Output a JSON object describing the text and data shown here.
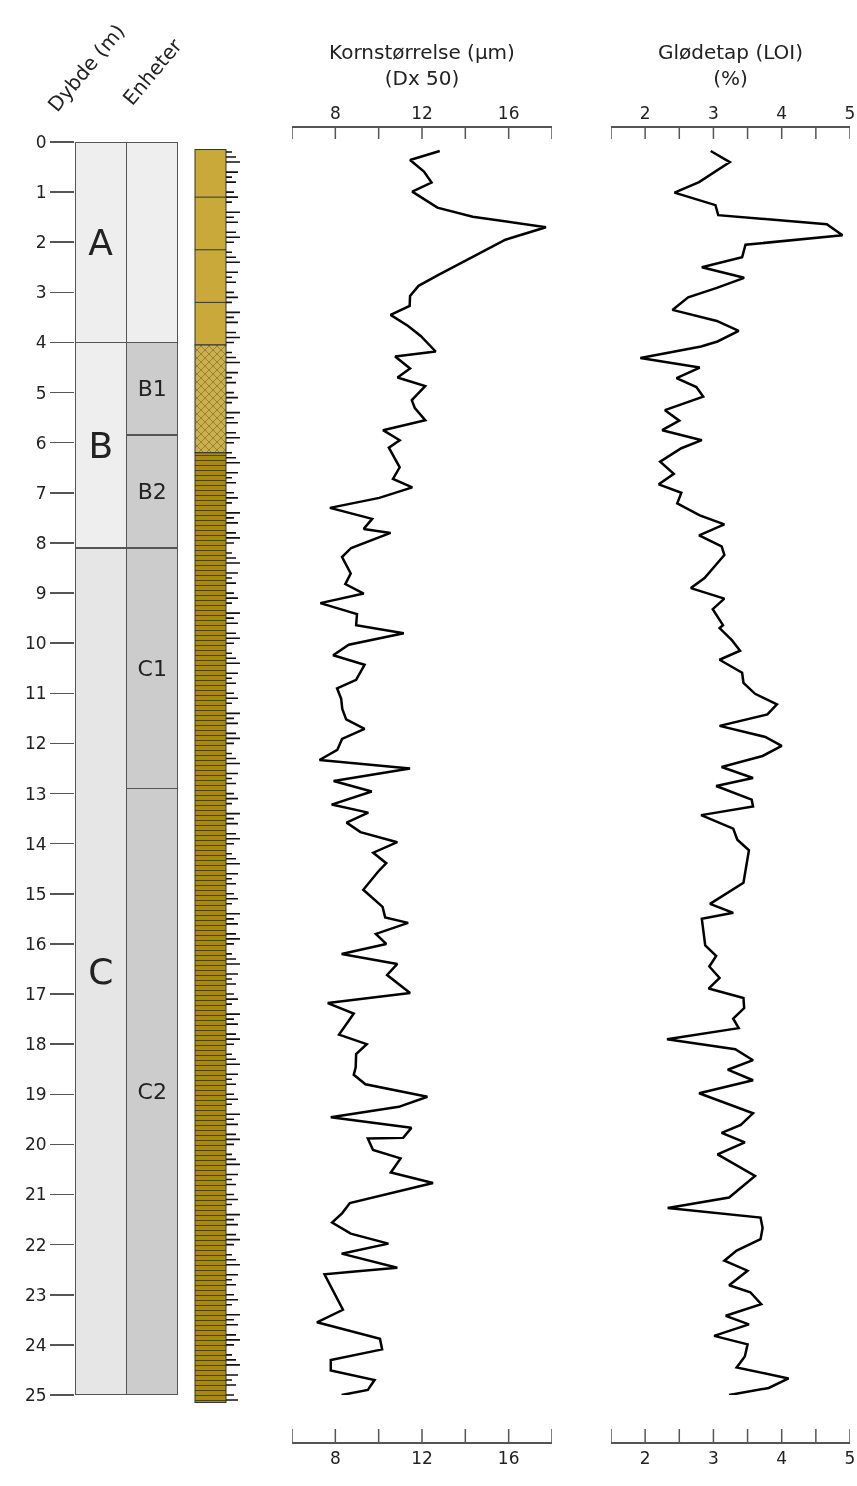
{
  "chart_data": [
    {
      "type": "bar",
      "stacked": true,
      "categories": [
        null,
        null
      ],
      "ylabel": "Dybde (m)",
      "xlabel": "Enheter",
      "ylim": [
        25,
        0
      ],
      "yticks": [
        0,
        1,
        2,
        3,
        4,
        5,
        6,
        7,
        8,
        9,
        10,
        11,
        12,
        13,
        14,
        15,
        16,
        17,
        18,
        19,
        20,
        21,
        22,
        23,
        24,
        25
      ],
      "tick_labels": "y",
      "series": [
        {
          "values": [
            4,
            4
          ],
          "colors": [
            "#eeeeee",
            "#eeeeee"
          ],
          "value_labels": [
            "A",
            null
          ]
        },
        {
          "values": [
            4.1,
            1.85
          ],
          "colors": [
            "#eeeeee",
            "#cccccc"
          ],
          "value_labels": [
            "B",
            "B1"
          ]
        },
        {
          "values": [
            16.9,
            2.25
          ],
          "colors": [
            "#e6e6e6",
            "#cccccc"
          ],
          "value_labels": [
            "C",
            "B2"
          ]
        },
        {
          "values": [
            null,
            4.8
          ],
          "colors": [
            "#e6e6e6",
            "#cccccc"
          ],
          "value_labels": [
            null,
            "C1"
          ]
        },
        {
          "values": [
            null,
            12.1
          ],
          "colors": [
            "#e6e6e6",
            "#cccccc"
          ],
          "value_labels": [
            null,
            "C2"
          ]
        }
      ]
    },
    {
      "type": "line",
      "x2label": "Kornstørrelse (µm)\n(Dx 50)",
      "xlim": [
        6,
        18
      ],
      "xticks": [
        {
          "value": 6,
          "label": null
        },
        8,
        {
          "value": 10,
          "label": null
        },
        12,
        {
          "value": 14,
          "label": null
        },
        16,
        {
          "value": 18,
          "label": null
        }
      ],
      "x2lim": [
        6,
        18
      ],
      "x2ticks": [
        {
          "value": 6,
          "label": null
        },
        8,
        {
          "value": 10,
          "label": null
        },
        12,
        {
          "value": 14,
          "label": null
        },
        16,
        {
          "value": 18,
          "label": null
        }
      ],
      "ylim": [
        25,
        0
      ],
      "tick_labels": "x",
      "series": [
        {
          "color": "#000000",
          "x": [
            12.82,
            11.45,
            12.09,
            12.44,
            11.55,
            12.71,
            14.34,
            17.72,
            15.85,
            12.76,
            11.84,
            11.45,
            11.43,
            10.55,
            11.36,
            11.94,
            12.63,
            10.76,
            11.45,
            10.87,
            12.15,
            11.53,
            11.67,
            12.15,
            10.2,
            10.97,
            10.47,
            10.97,
            10.66,
            11.55,
            10.03,
            7.75,
            9.7,
            9.31,
            10.55,
            8.73,
            8.31,
            8.71,
            8.46,
            9.31,
            7.31,
            9.0,
            8.96,
            11.16,
            8.62,
            7.9,
            9.35,
            8.96,
            8.08,
            8.27,
            8.32,
            8.5,
            9.35,
            8.31,
            8.09,
            7.27,
            11.45,
            7.92,
            9.68,
            7.83,
            9.52,
            8.52,
            9.16,
            10.86,
            9.75,
            10.35,
            9.97,
            9.29,
            10.18,
            10.3,
            11.36,
            9.87,
            10.35,
            8.29,
            10.86,
            10.39,
            11.45,
            7.65,
            8.85,
            8.17,
            9.45,
            8.96,
            8.94,
            8.85,
            9.39,
            12.25,
            10.93,
            7.79,
            11.51,
            11.13,
            9.5,
            9.74,
            11.01,
            10.56,
            12.51,
            8.67,
            8.32,
            7.85,
            8.71,
            10.45,
            8.29,
            10.86,
            7.5,
            8.35,
            7.15,
            10.06,
            10.16,
            7.79,
            7.79,
            9.81,
            9.5,
            8.29
          ],
          "values": [
            0.18,
            0.36,
            0.59,
            0.81,
            0.99,
            1.31,
            1.49,
            1.7,
            1.95,
            2.65,
            2.87,
            3.07,
            3.27,
            3.45,
            3.67,
            3.87,
            4.18,
            4.28,
            4.52,
            4.7,
            4.87,
            5.15,
            5.31,
            5.55,
            5.75,
            5.95,
            6.1,
            6.49,
            6.72,
            6.89,
            7.1,
            7.3,
            7.52,
            7.72,
            7.8,
            8.1,
            8.28,
            8.61,
            8.82,
            9.01,
            9.2,
            9.42,
            9.64,
            9.8,
            10.03,
            10.24,
            10.43,
            10.73,
            10.9,
            11.11,
            11.31,
            11.52,
            11.71,
            11.91,
            12.13,
            12.33,
            12.5,
            12.75,
            12.96,
            13.22,
            13.38,
            13.58,
            13.77,
            13.97,
            14.18,
            14.39,
            14.56,
            14.92,
            15.26,
            15.47,
            15.58,
            15.8,
            16.0,
            16.2,
            16.4,
            16.62,
            16.98,
            17.18,
            17.39,
            17.81,
            18.0,
            18.2,
            18.46,
            18.61,
            18.8,
            19.05,
            19.25,
            19.46,
            19.67,
            19.87,
            19.88,
            20.11,
            20.28,
            20.56,
            20.77,
            21.17,
            21.37,
            21.56,
            21.78,
            21.98,
            22.18,
            22.46,
            22.59,
            23.3,
            23.55,
            23.88,
            24.09,
            24.3,
            24.51,
            24.7,
            24.9,
            25
          ]
        }
      ]
    },
    {
      "type": "line",
      "x2label": "Glødetap (LOI)\n(%)",
      "xlim": [
        1.5,
        5
      ],
      "xticks": [
        {
          "value": 1.5,
          "label": null
        },
        2,
        {
          "value": 2.5,
          "label": null
        },
        3,
        {
          "value": 3.5,
          "label": null
        },
        4,
        {
          "value": 4.5,
          "label": null
        },
        5
      ],
      "x2lim": [
        1.5,
        5
      ],
      "x2ticks": [
        {
          "value": 1.5,
          "label": null
        },
        2,
        {
          "value": 2.5,
          "label": null
        },
        3,
        {
          "value": 3.5,
          "label": null
        },
        4,
        {
          "value": 4.5,
          "label": null
        },
        5
      ],
      "ylim": [
        25,
        0
      ],
      "tick_labels": "x",
      "series": [
        {
          "color": "#000000",
          "x": [
            2.96,
            3.24,
            2.79,
            2.43,
            3.03,
            3.07,
            4.66,
            4.89,
            3.47,
            3.42,
            2.83,
            3.45,
            3.05,
            2.63,
            2.4,
            3.05,
            3.37,
            3.06,
            2.82,
            1.93,
            2.8,
            2.46,
            2.75,
            2.85,
            2.29,
            2.5,
            2.25,
            2.83,
            2.53,
            2.22,
            2.42,
            2.2,
            2.53,
            2.47,
            2.8,
            3.16,
            2.79,
            3.12,
            3.16,
            2.87,
            2.67,
            3.16,
            2.99,
            3.14,
            3.09,
            3.27,
            3.39,
            3.09,
            3.42,
            3.44,
            3.61,
            3.93,
            3.79,
            3.09,
            3.76,
            4.0,
            3.72,
            3.12,
            3.58,
            3.04,
            3.56,
            3.58,
            2.82,
            3.29,
            3.35,
            3.52,
            3.44,
            2.95,
            3.29,
            2.83,
            2.88,
            3.04,
            2.94,
            3.09,
            2.93,
            3.44,
            3.45,
            3.29,
            3.37,
            2.32,
            3.32,
            3.58,
            3.21,
            3.58,
            2.79,
            3.58,
            3.4,
            3.12,
            3.46,
            3.06,
            3.61,
            3.23,
            2.33,
            3.69,
            3.72,
            3.69,
            3.34,
            3.16,
            3.5,
            3.23,
            3.54,
            3.7,
            3.18,
            3.52,
            3.01,
            3.5,
            3.46,
            3.34,
            4.1,
            3.81,
            3.23
          ],
          "values": [
            0.18,
            0.4,
            0.8,
            1.01,
            1.26,
            1.46,
            1.64,
            1.86,
            2.05,
            2.3,
            2.5,
            2.71,
            2.91,
            3.1,
            3.35,
            3.57,
            3.77,
            3.98,
            4.08,
            4.31,
            4.5,
            4.71,
            4.89,
            5.08,
            5.35,
            5.56,
            5.75,
            5.95,
            6.11,
            6.38,
            6.62,
            6.83,
            7.0,
            7.21,
            7.45,
            7.63,
            7.85,
            8.07,
            8.24,
            8.7,
            8.9,
            9.11,
            9.32,
            9.64,
            9.7,
            9.94,
            10.15,
            10.33,
            10.59,
            10.79,
            11.01,
            11.22,
            11.42,
            11.65,
            11.87,
            12.05,
            12.25,
            12.47,
            12.69,
            12.85,
            13.12,
            13.26,
            13.43,
            13.7,
            13.92,
            14.13,
            14.78,
            15.2,
            15.38,
            15.5,
            16.03,
            16.24,
            16.45,
            16.68,
            16.89,
            17.08,
            17.28,
            17.49,
            17.68,
            17.9,
            18.1,
            18.32,
            18.51,
            18.72,
            18.98,
            19.38,
            19.61,
            19.77,
            19.96,
            20.2,
            20.63,
            21.06,
            21.27,
            21.46,
            21.67,
            21.89,
            22.12,
            22.32,
            22.52,
            22.81,
            22.95,
            23.19,
            23.42,
            23.59,
            23.82,
            23.99,
            24.23,
            24.45,
            24.67,
            24.86,
            25
          ]
        }
      ]
    }
  ]
}
